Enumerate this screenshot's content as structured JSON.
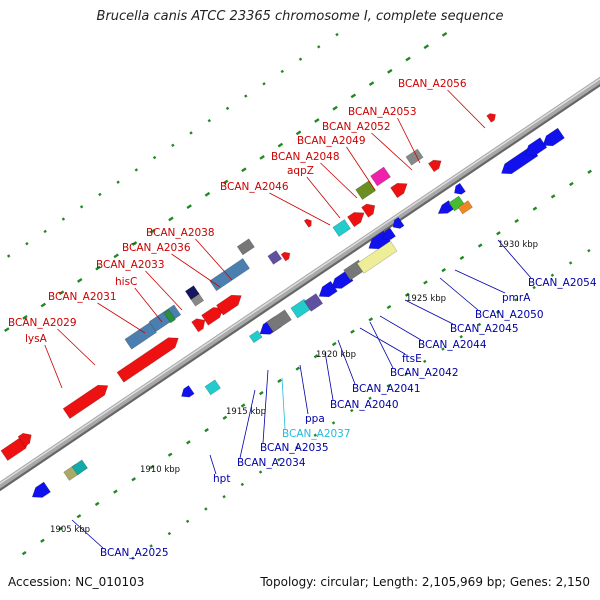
{
  "title": "Brucella canis ATCC 23365 chromosome I, complete sequence",
  "footer": {
    "accession": "Accession: NC_010103",
    "summary": "Topology: circular; Length: 2,105,969 bp; Genes: 2,150"
  },
  "colors": {
    "forward_strand": "#ee1111",
    "reverse_strand": "#1111ee",
    "backbone": "#999999",
    "forward_label": "#cc0000",
    "reverse_label": "#0000aa",
    "highlight_label": "#22bbdd",
    "tick": "#228822"
  },
  "scale_labels": [
    "1905 kbp",
    "1910 kbp",
    "1915 kbp",
    "1920 kbp",
    "1925 kbp",
    "1930 kbp"
  ],
  "forward_labels": [
    "BCAN_A2056",
    "BCAN_A2053",
    "BCAN_A2052",
    "BCAN_A2049",
    "BCAN_A2048",
    "aqpZ",
    "BCAN_A2046",
    "BCAN_A2038",
    "BCAN_A2036",
    "BCAN_A2033",
    "hisC",
    "BCAN_A2031",
    "BCAN_A2029",
    "lysA"
  ],
  "reverse_labels": [
    "BCAN_A2054",
    "pmrA",
    "BCAN_A2050",
    "BCAN_A2045",
    "BCAN_A2044",
    "BCAN_A2042",
    "ftsE",
    "BCAN_A2041",
    "BCAN_A2040",
    "ppa",
    "BCAN_A2037",
    "BCAN_A2035",
    "BCAN_A2034",
    "hpt",
    "BCAN_A2025"
  ]
}
